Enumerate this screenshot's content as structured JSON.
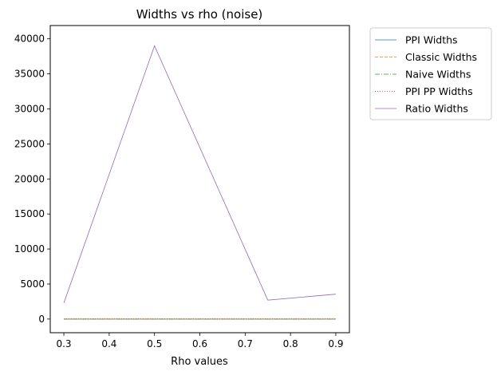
{
  "chart_data": {
    "type": "line",
    "title": "Widths vs rho (noise)",
    "xlabel": "Rho values",
    "ylabel": "",
    "x": [
      0.3,
      0.5,
      0.75,
      0.9
    ],
    "xlim": [
      0.27,
      0.93
    ],
    "ylim": [
      -1950,
      41900
    ],
    "xticks": [
      "0.3",
      "0.4",
      "0.5",
      "0.6",
      "0.7",
      "0.8",
      "0.9"
    ],
    "yticks": [
      "0",
      "5000",
      "10000",
      "15000",
      "20000",
      "25000",
      "30000",
      "35000",
      "40000"
    ],
    "grid": false,
    "legend_position": "outside-top-right",
    "series": [
      {
        "name": "PPI Widths",
        "values": [
          5,
          5,
          5,
          5
        ],
        "color": "#1f77b4",
        "dash": "solid"
      },
      {
        "name": "Classic Widths",
        "values": [
          8,
          8,
          8,
          8
        ],
        "color": "#ff7f0e",
        "dash": "dashed"
      },
      {
        "name": "Naive Widths",
        "values": [
          4,
          4,
          4,
          4
        ],
        "color": "#2ca02c",
        "dash": "dashdot"
      },
      {
        "name": "PPI PP Widths",
        "values": [
          6,
          6,
          6,
          6
        ],
        "color": "#d62728",
        "dash": "dotted"
      },
      {
        "name": "Ratio Widths",
        "values": [
          2300,
          39000,
          2700,
          3550
        ],
        "color": "#9467bd",
        "dash": "solid"
      }
    ]
  }
}
